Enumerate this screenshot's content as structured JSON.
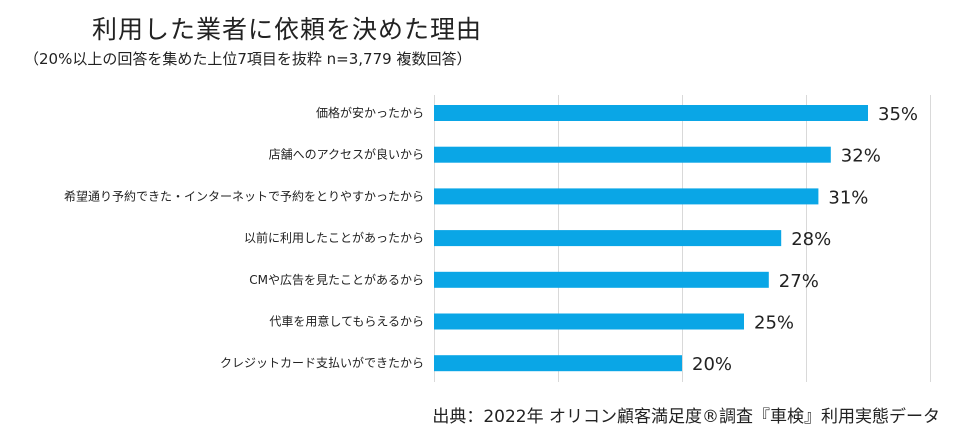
{
  "header": {
    "title": "利用した業者に依頼を決めた理由",
    "subtitle": "（20%以上の回答を集めた上位7項目を抜粋 n=3,779 複数回答）"
  },
  "footer": {
    "source": "出典：2022年 オリコン顧客満足度®調査『車検』利用実態データ"
  },
  "chart_data": {
    "type": "bar",
    "orientation": "horizontal",
    "title": "利用した業者に依頼を決めた理由",
    "subtitle": "（20%以上の回答を集めた上位7項目を抜粋 n=3,779 複数回答）",
    "categories": [
      "価格が安かったから",
      "店舗へのアクセスが良いから",
      "希望通り予約できた・インターネットで予約をとりやすかったから",
      "以前に利用したことがあったから",
      "CMや広告を見たことがあるから",
      "代車を用意してもらえるから",
      "クレジットカード支払いができたから"
    ],
    "values": [
      35,
      32,
      31,
      28,
      27,
      25,
      20
    ],
    "value_labels": [
      "35%",
      "32%",
      "31%",
      "28%",
      "27%",
      "25%",
      "20%"
    ],
    "unit": "%",
    "xlim": [
      0,
      40
    ],
    "gridlines": [
      0,
      10,
      20,
      30,
      40
    ],
    "bar_color": "#0aa6e6",
    "grid_color": "#d9d9d9"
  }
}
